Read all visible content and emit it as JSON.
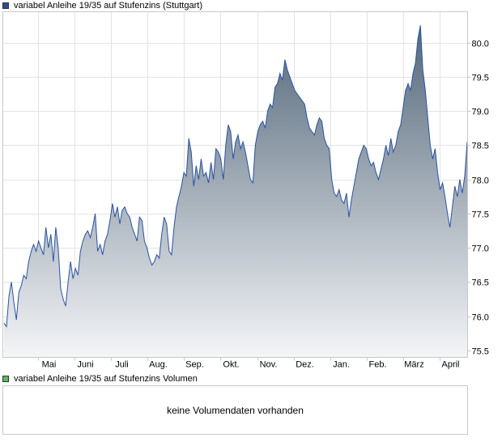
{
  "colors": {
    "line": "#2952a3",
    "fill_top": "#54687a",
    "fill_bottom": "#f4f5f7",
    "grid": "#e3e3e3",
    "frame": "#c8c8c8",
    "legend_price_swatch": "#2a4a9e",
    "legend_volume_swatch": "#5bb85b"
  },
  "legend": {
    "price": "variabel Anleihe 19/35 auf Stufenzins (Stuttgart)",
    "volume": "variabel Anleihe 19/35 auf Stufenzins Volumen"
  },
  "volume_panel": {
    "message": "keine Volumendaten vorhanden"
  },
  "chart_data": {
    "type": "area",
    "title": "",
    "xlabel": "",
    "ylabel": "",
    "x_tick_labels": [
      "Mai",
      "Juni",
      "Juli",
      "Aug.",
      "Sep.",
      "Okt.",
      "Nov.",
      "Dez.",
      "Jan.",
      "Feb.",
      "März",
      "April"
    ],
    "y_ticks": [
      75.5,
      76.0,
      76.5,
      77.0,
      77.5,
      78.0,
      78.5,
      79.0,
      79.5,
      80.0
    ],
    "ylim": [
      75.4,
      80.45
    ],
    "grid": true,
    "y_axis_side": "right",
    "series": [
      {
        "values": [
          75.9,
          75.85,
          76.3,
          76.5,
          76.2,
          75.95,
          76.35,
          76.45,
          76.6,
          76.55,
          76.8,
          76.95,
          77.05,
          76.95,
          77.1,
          77.0,
          76.9,
          77.3,
          77.0,
          77.2,
          76.8,
          77.3,
          77.0,
          76.4,
          76.25,
          76.15,
          76.5,
          76.8,
          76.55,
          76.7,
          76.6,
          76.95,
          77.1,
          77.2,
          77.25,
          77.15,
          77.3,
          77.5,
          76.95,
          77.05,
          76.9,
          77.1,
          77.2,
          77.4,
          77.65,
          77.45,
          77.6,
          77.35,
          77.55,
          77.6,
          77.5,
          77.45,
          77.3,
          77.2,
          77.1,
          77.45,
          77.4,
          77.1,
          77.0,
          76.85,
          76.75,
          76.8,
          76.9,
          76.85,
          77.2,
          77.45,
          77.35,
          76.95,
          76.9,
          77.3,
          77.6,
          77.75,
          77.9,
          78.1,
          78.05,
          78.6,
          78.4,
          77.9,
          78.2,
          78.0,
          78.3,
          78.05,
          78.1,
          77.95,
          78.25,
          78.0,
          78.45,
          78.4,
          78.3,
          78.0,
          78.5,
          78.8,
          78.7,
          78.3,
          78.55,
          78.65,
          78.45,
          78.55,
          78.4,
          78.2,
          78.0,
          77.95,
          78.5,
          78.7,
          78.8,
          78.85,
          78.75,
          79.0,
          79.1,
          79.05,
          79.35,
          79.4,
          79.55,
          79.45,
          79.75,
          79.6,
          79.5,
          79.4,
          79.3,
          79.25,
          79.2,
          79.15,
          79.1,
          78.9,
          78.75,
          78.7,
          78.65,
          78.8,
          78.9,
          78.85,
          78.6,
          78.5,
          78.45,
          78.0,
          77.8,
          77.75,
          77.85,
          77.7,
          77.65,
          77.8,
          77.45,
          77.7,
          77.9,
          78.1,
          78.3,
          78.4,
          78.5,
          78.45,
          78.3,
          78.2,
          78.25,
          78.1,
          78.0,
          78.15,
          78.3,
          78.5,
          78.35,
          78.6,
          78.4,
          78.5,
          78.7,
          78.8,
          79.05,
          79.3,
          79.4,
          79.3,
          79.55,
          79.7,
          80.05,
          80.25,
          79.6,
          79.3,
          78.9,
          78.5,
          78.3,
          78.45,
          78.1,
          77.85,
          77.95,
          77.75,
          77.5,
          77.3,
          77.6,
          77.9,
          77.75,
          78.0,
          77.8,
          78.05,
          78.55
        ]
      }
    ]
  }
}
